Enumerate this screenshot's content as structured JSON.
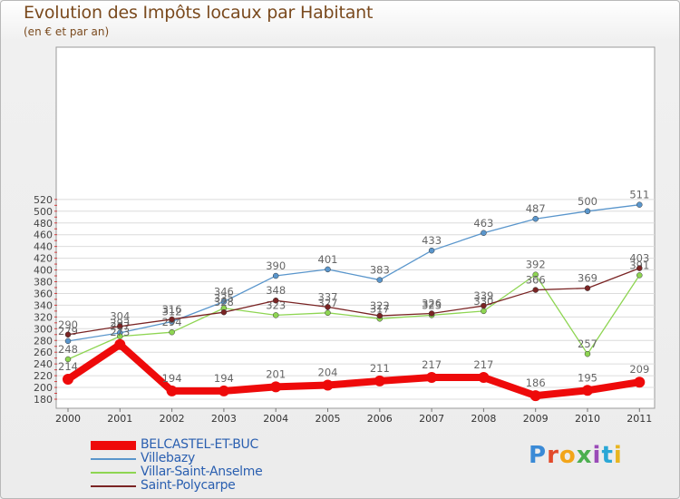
{
  "chart_data": {
    "type": "line",
    "title": "Evolution des Impôts locaux par Habitant",
    "subtitle": "(en € et par an)",
    "categories": [
      "2000",
      "2001",
      "2002",
      "2003",
      "2004",
      "2005",
      "2006",
      "2007",
      "2008",
      "2009",
      "2010",
      "2011"
    ],
    "ylim": [
      180,
      520
    ],
    "yticks": [
      180,
      200,
      220,
      240,
      260,
      280,
      300,
      320,
      340,
      360,
      380,
      400,
      420,
      440,
      460,
      480,
      500,
      520
    ],
    "series": [
      {
        "name": "Villebazy",
        "color": "#5a96cc",
        "values": [
          279,
          293,
          312,
          346,
          390,
          401,
          383,
          433,
          463,
          487,
          500,
          511
        ]
      },
      {
        "name": "Villar-Saint-Anselme",
        "color": "#8ed552",
        "values": [
          248,
          287,
          294,
          335,
          323,
          327,
          317,
          323,
          330,
          392,
          257,
          391
        ]
      },
      {
        "name": "Saint-Polycarpe",
        "color": "#7a2424",
        "values": [
          290,
          304,
          316,
          328,
          348,
          337,
          322,
          326,
          339,
          366,
          369,
          403
        ]
      },
      {
        "name": "BELCASTEL-ET-BUC",
        "color": "#ee0a0a",
        "values": [
          214,
          273,
          194,
          194,
          201,
          204,
          211,
          217,
          217,
          186,
          195,
          209
        ]
      }
    ],
    "legend": [
      {
        "label": "BELCASTEL-ET-BUC",
        "color": "#ee0a0a"
      },
      {
        "label": "Villebazy",
        "color": "#5a96cc"
      },
      {
        "label": "Villar-Saint-Anselme",
        "color": "#8ed552"
      },
      {
        "label": "Saint-Polycarpe",
        "color": "#7a2424"
      }
    ]
  },
  "logo": {
    "text": "Proxiti",
    "colors": [
      "#3a8ad6",
      "#e24a2a",
      "#f2a51a",
      "#4caf50",
      "#9a4bb8",
      "#2aa7d6",
      "#e8b51f"
    ]
  }
}
